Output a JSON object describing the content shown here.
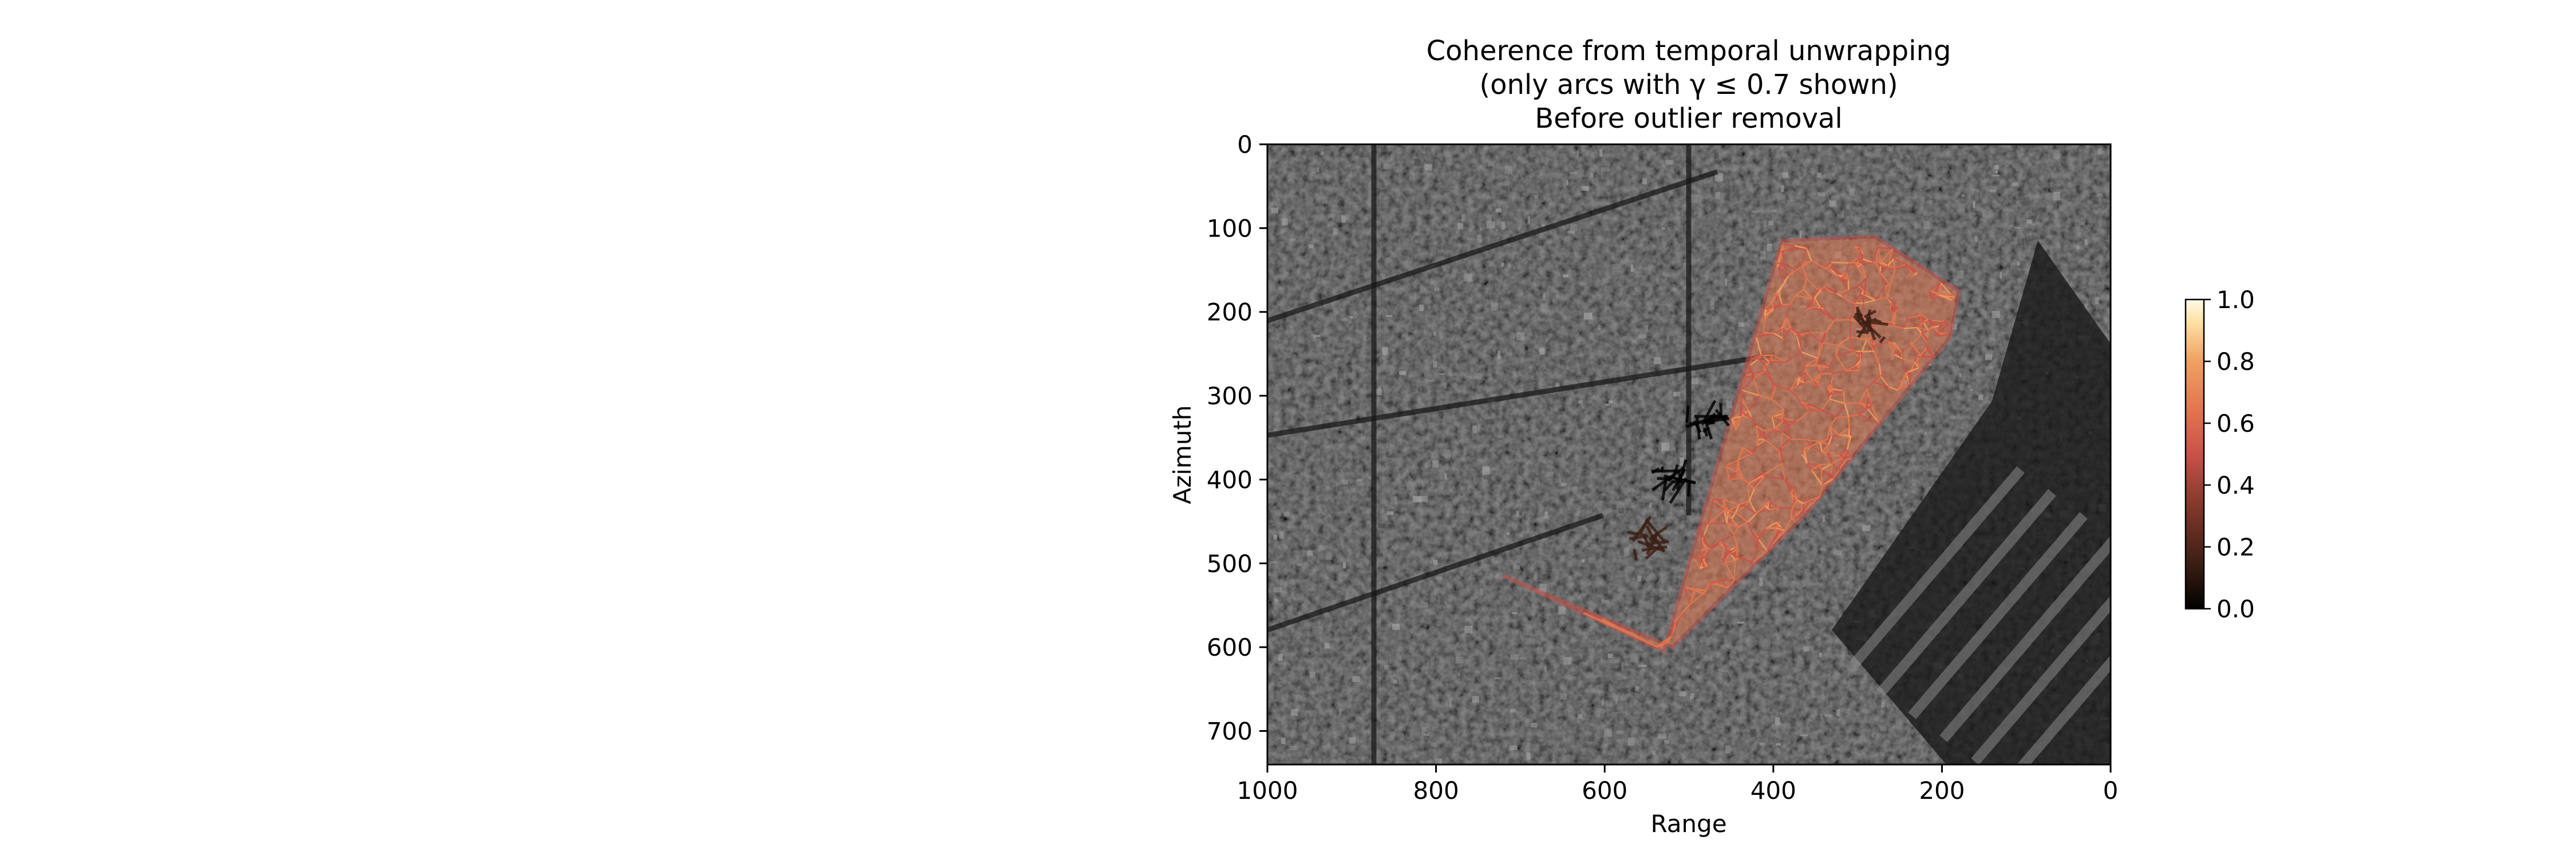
{
  "chart_data": {
    "type": "scatter",
    "title_lines": [
      "Coherence from temporal unwrapping",
      "(only arcs with γ ≤  0.7 shown)",
      "Before outlier removal"
    ],
    "xlabel": "Range",
    "ylabel": "Azimuth",
    "xlim": [
      1000,
      0
    ],
    "ylim": [
      740,
      0
    ],
    "x_ticks": [
      1000,
      800,
      600,
      400,
      200,
      0
    ],
    "y_ticks": [
      0,
      100,
      200,
      300,
      400,
      500,
      600,
      700
    ],
    "grid": false,
    "background": "grayscale SAR amplitude image",
    "network_outline": {
      "range": [
        720,
        530,
        390,
        280,
        180,
        190,
        360,
        520
      ],
      "azimuth": [
        515,
        605,
        115,
        110,
        175,
        230,
        440,
        600
      ]
    },
    "low_coherence_patches": [
      {
        "range": 520,
        "azimuth": 400,
        "coherence": 0.05
      },
      {
        "range": 480,
        "azimuth": 330,
        "coherence": 0.1
      },
      {
        "range": 290,
        "azimuth": 215,
        "coherence": 0.15
      },
      {
        "range": 550,
        "azimuth": 470,
        "coherence": 0.2
      }
    ],
    "colorbar": {
      "colormap": "afmhot",
      "min": 0.0,
      "max": 1.0,
      "ticks": [
        "0.0",
        "0.2",
        "0.4",
        "0.6",
        "0.8",
        "1.0"
      ]
    }
  },
  "colors": {
    "colormap_stops": [
      "#000000",
      "#3d1f14",
      "#7a3328",
      "#c8524a",
      "#e2784f",
      "#f0a060",
      "#fde8b0",
      "#ffffff"
    ]
  }
}
